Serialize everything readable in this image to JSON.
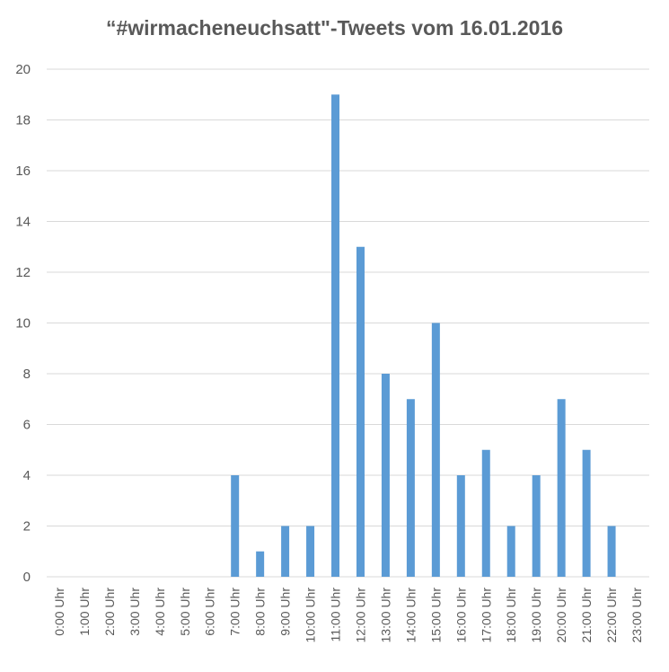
{
  "chart_data": {
    "type": "bar",
    "title": "“#wirmacheneuchsatt\"-Tweets vom 16.01.2016",
    "xlabel": "",
    "ylabel": "",
    "ylim": [
      0,
      20
    ],
    "yticks": [
      0,
      2,
      4,
      6,
      8,
      10,
      12,
      14,
      16,
      18,
      20
    ],
    "grid": true,
    "legend": "none",
    "bar_color": "#5b9bd5",
    "grid_color": "#d9d9d9",
    "categories": [
      "0:00 Uhr",
      "1:00 Uhr",
      "2:00 Uhr",
      "3:00 Uhr",
      "4:00 Uhr",
      "5:00 Uhr",
      "6:00 Uhr",
      "7:00 Uhr",
      "8:00 Uhr",
      "9:00 Uhr",
      "10:00 Uhr",
      "11:00 Uhr",
      "12:00 Uhr",
      "13:00 Uhr",
      "14:00 Uhr",
      "15:00 Uhr",
      "16:00 Uhr",
      "17:00 Uhr",
      "18:00 Uhr",
      "19:00 Uhr",
      "20:00 Uhr",
      "21:00 Uhr",
      "22:00 Uhr",
      "23:00 Uhr"
    ],
    "values": [
      0,
      0,
      0,
      0,
      0,
      0,
      0,
      4,
      1,
      2,
      2,
      19,
      13,
      8,
      7,
      10,
      4,
      5,
      2,
      4,
      7,
      5,
      2,
      0
    ]
  }
}
